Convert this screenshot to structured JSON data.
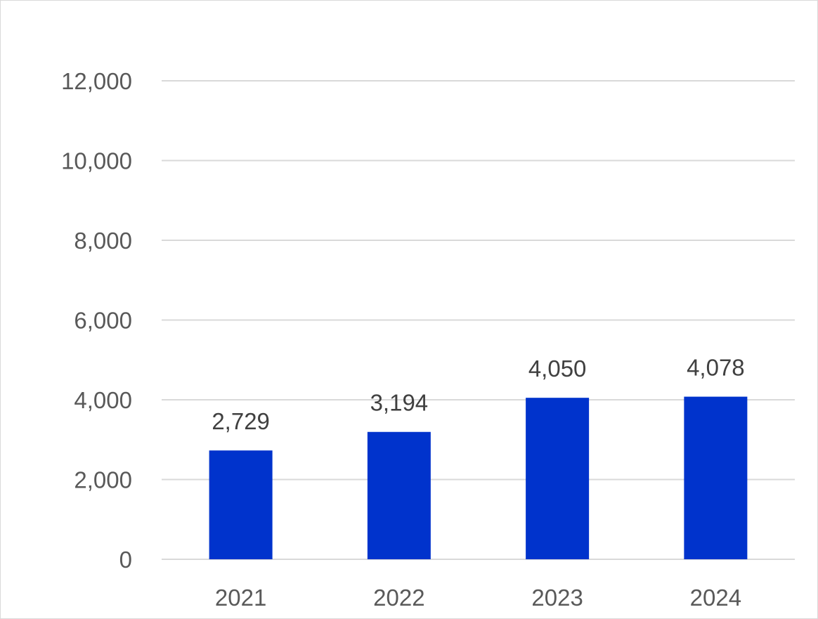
{
  "chart_data": {
    "type": "bar",
    "title": "",
    "xlabel": "",
    "ylabel": "",
    "categories": [
      "2021",
      "2022",
      "2023",
      "2024"
    ],
    "values": [
      2729,
      3194,
      4050,
      4078
    ],
    "data_labels": [
      "2,729",
      "3,194",
      "4,050",
      "4,078"
    ],
    "y_ticks": [
      0,
      2000,
      4000,
      6000,
      8000,
      10000,
      12000
    ],
    "y_tick_labels": [
      "0",
      "2,000",
      "4,000",
      "6,000",
      "8,000",
      "10,000",
      "12,000"
    ],
    "ylim": [
      0,
      12000
    ],
    "grid": true,
    "legend": "none",
    "colors": {
      "bar": "#0033CC",
      "grid": "#D9D9D9",
      "axis_text": "#595959",
      "label_text": "#404040"
    }
  }
}
